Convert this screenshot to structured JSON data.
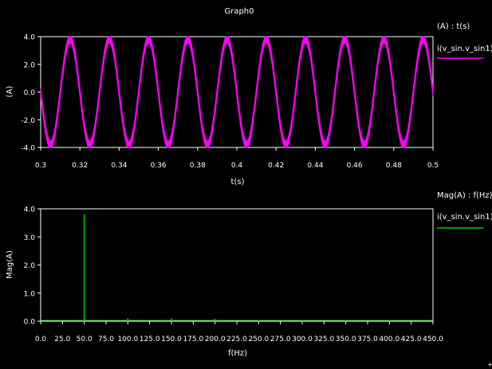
{
  "window": {
    "title": "Graph0"
  },
  "colors": {
    "background": "#000000",
    "frame": "#ffffff",
    "series_top": "#ff00ff",
    "series_bottom": "#00d000"
  },
  "chart_data": [
    {
      "type": "line",
      "title": "Graph0",
      "legend_header": "(A) : t(s)",
      "xlabel": "t(s)",
      "ylabel": "(A)",
      "xlim": [
        0.3,
        0.5
      ],
      "ylim": [
        -4.0,
        4.0
      ],
      "x_ticks": [
        "0.3",
        "0.32",
        "0.34",
        "0.36",
        "0.38",
        "0.4",
        "0.42",
        "0.44",
        "0.46",
        "0.48",
        "0.5"
      ],
      "y_ticks": [
        "4.0",
        "2.0",
        "0.0",
        "-2.0",
        "-4.0"
      ],
      "grid": false,
      "legend_position": "right",
      "series": [
        {
          "name": "i(v_sin.v_sin1)",
          "color": "#ff00ff",
          "kind": "sine",
          "amplitude": 3.8,
          "frequency_hz": 50,
          "ripple_amplitude": 0.25,
          "x": [
            0.3,
            0.305,
            0.31,
            0.315,
            0.32,
            0.325,
            0.33,
            0.335,
            0.34,
            0.345,
            0.35,
            0.355,
            0.36,
            0.365,
            0.37,
            0.375,
            0.38,
            0.385,
            0.39,
            0.395,
            0.4,
            0.405,
            0.41,
            0.415,
            0.42,
            0.425,
            0.43,
            0.435,
            0.44,
            0.445,
            0.45,
            0.455,
            0.46,
            0.465,
            0.47,
            0.475,
            0.48,
            0.485,
            0.49,
            0.495,
            0.5
          ],
          "y": [
            0,
            -3.8,
            0,
            3.8,
            0,
            -3.8,
            0,
            3.8,
            0,
            -3.8,
            0,
            3.8,
            0,
            -3.8,
            0,
            3.8,
            0,
            -3.8,
            0,
            3.8,
            0,
            -3.8,
            0,
            3.8,
            0,
            -3.8,
            0,
            3.8,
            0,
            -3.8,
            0,
            3.8,
            0,
            -3.8,
            0,
            3.8,
            0,
            -3.8,
            0,
            3.8,
            0
          ]
        }
      ]
    },
    {
      "type": "bar",
      "legend_header": "Mag(A) : f(Hz)",
      "xlabel": "f(Hz)",
      "ylabel": "Mag(A)",
      "xlim": [
        0,
        450
      ],
      "ylim": [
        0,
        4.0
      ],
      "x_ticks": [
        "0.0",
        "25.0",
        "50.0",
        "75.0",
        "100.0",
        "125.0",
        "150.0",
        "175.0",
        "200.0",
        "225.0",
        "250.0",
        "275.0",
        "300.0",
        "325.0",
        "350.0",
        "375.0",
        "400.0",
        "425.0",
        "450.0"
      ],
      "y_ticks": [
        "4.0",
        "3.0",
        "2.0",
        "1.0",
        "0.0"
      ],
      "grid": false,
      "legend_position": "right",
      "series": [
        {
          "name": "i(v_sin.v_sin1)",
          "color": "#00d000",
          "x": [
            50,
            100,
            150,
            200,
            250,
            300,
            350,
            400
          ],
          "y": [
            3.8,
            0.1,
            0.1,
            0.08,
            0.04,
            0.04,
            0.04,
            0.04
          ]
        }
      ]
    }
  ]
}
